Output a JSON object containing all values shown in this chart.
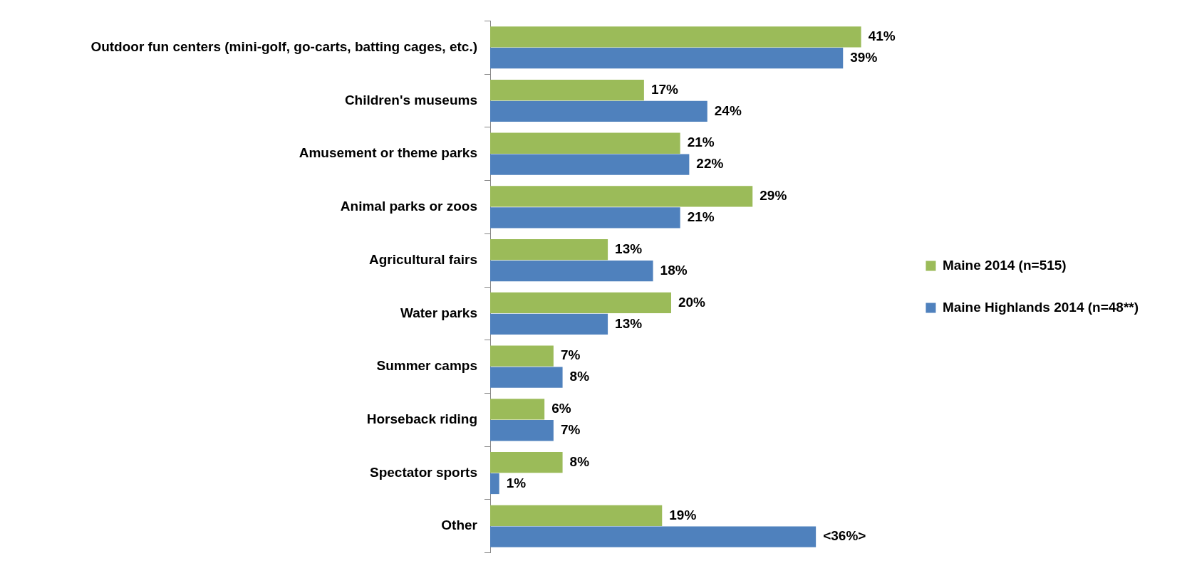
{
  "chart_data": {
    "type": "bar",
    "orientation": "horizontal",
    "categories": [
      "Outdoor fun centers (mini-golf, go-carts, batting cages, etc.)",
      "Children's museums",
      "Amusement or theme parks",
      "Animal parks or zoos",
      "Agricultural fairs",
      "Water parks",
      "Summer camps",
      "Horseback riding",
      "Spectator sports",
      "Other"
    ],
    "series": [
      {
        "name": "Maine 2014 (n=515)",
        "color": "#9bbb59",
        "values": [
          41,
          17,
          21,
          29,
          13,
          20,
          7,
          6,
          8,
          19
        ],
        "value_labels": [
          "41%",
          "17%",
          "21%",
          "29%",
          "13%",
          "20%",
          "7%",
          "6%",
          "8%",
          "19%"
        ]
      },
      {
        "name": "Maine Highlands 2014 (n=48**)",
        "color": "#4f81bd",
        "values": [
          39,
          24,
          22,
          21,
          18,
          13,
          8,
          7,
          1,
          36
        ],
        "value_labels": [
          "39%",
          "24%",
          "22%",
          "21%",
          "18%",
          "13%",
          "8%",
          "7%",
          "1%",
          "<36%>"
        ]
      }
    ],
    "legend": "right"
  }
}
